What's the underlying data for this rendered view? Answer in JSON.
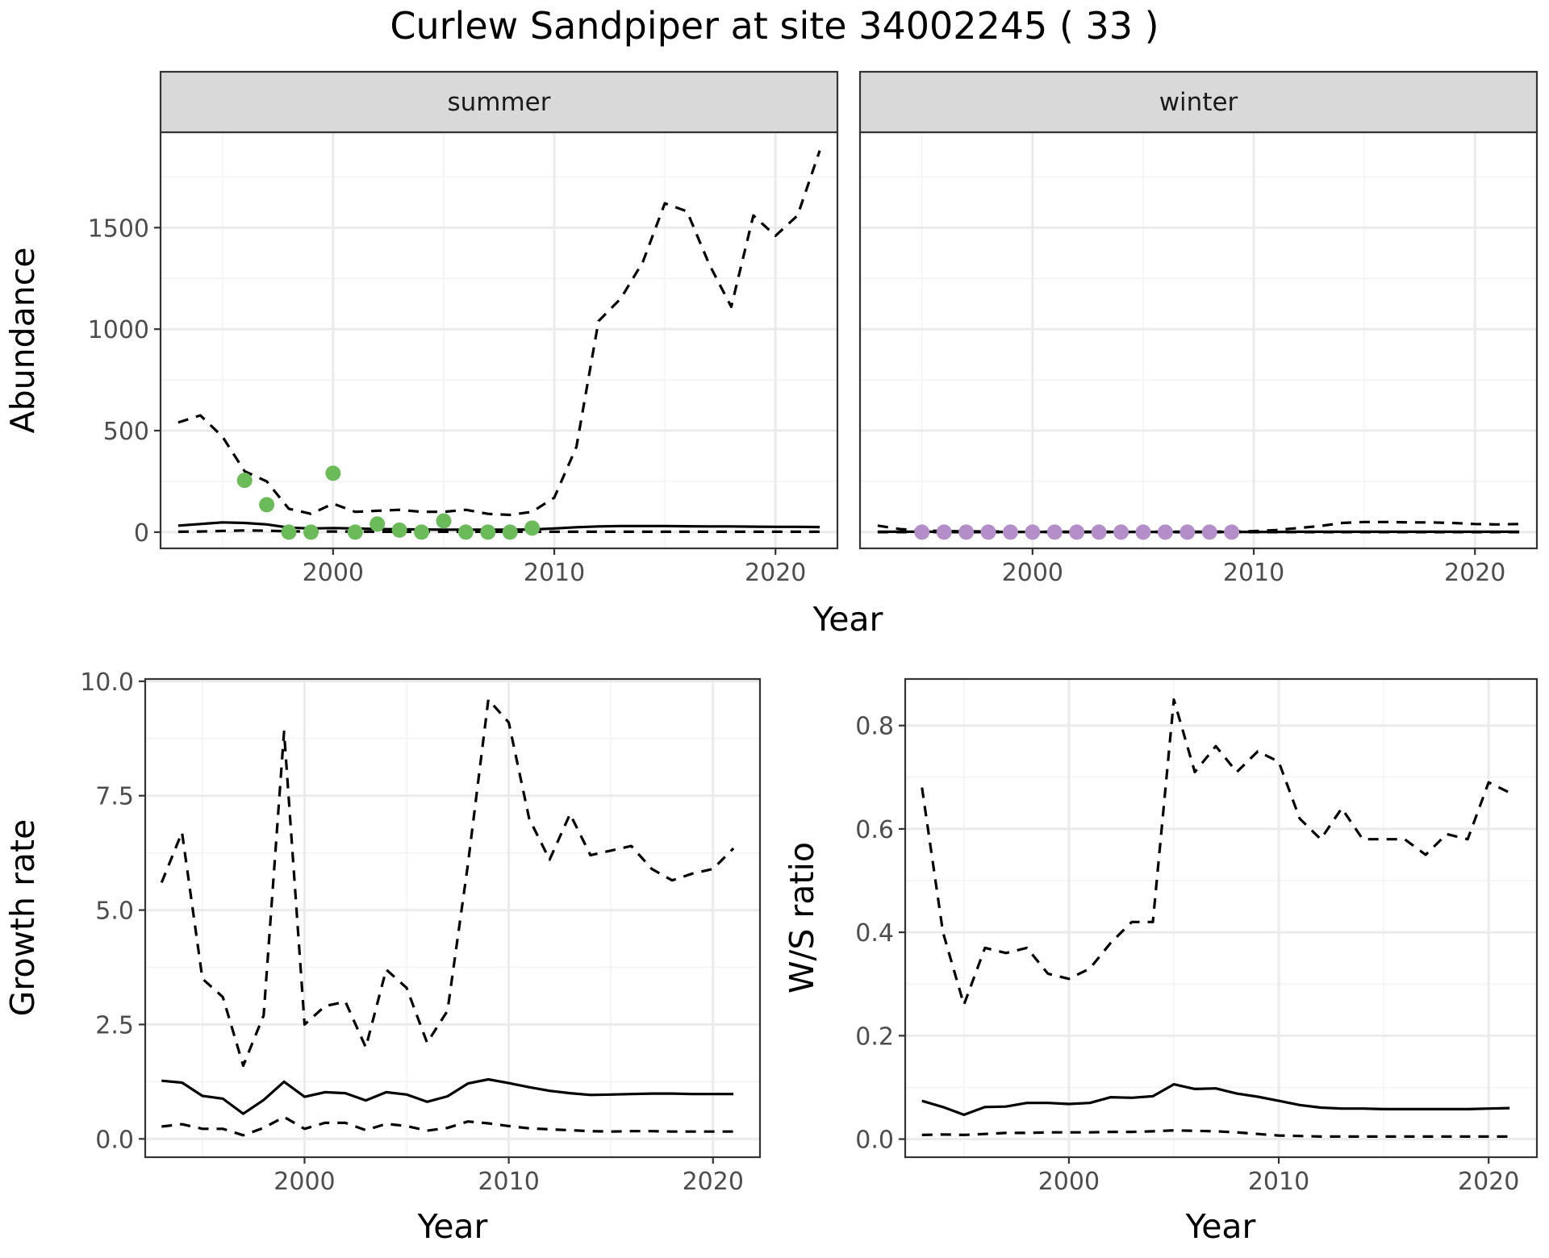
{
  "title": "Curlew Sandpiper at site 34002245 ( 33 )",
  "colors": {
    "summer_points": "#6cbb5a",
    "winter_points": "#b48ec8"
  },
  "chart_data": [
    {
      "type": "line",
      "facet": "summer",
      "xlabel": "Year",
      "ylabel": "Abundance",
      "xlim": [
        1992.2,
        2022.8
      ],
      "ylim": [
        -80,
        1970
      ],
      "x_ticks": [
        "2000",
        "2010",
        "2020"
      ],
      "y_ticks": [
        "0",
        "500",
        "1000",
        "1500"
      ],
      "grid": true,
      "series": [
        {
          "style": "dashed",
          "x": [
            1993,
            1994,
            1995,
            1996,
            1997,
            1998,
            1999,
            2000,
            2001,
            2002,
            2003,
            2004,
            2005,
            2006,
            2007,
            2008,
            2009,
            2010,
            2011,
            2012,
            2013,
            2014,
            2015,
            2016,
            2017,
            2018,
            2019,
            2020,
            2021,
            2022
          ],
          "y": [
            540,
            575,
            470,
            300,
            250,
            115,
            90,
            140,
            100,
            105,
            110,
            100,
            100,
            110,
            90,
            85,
            100,
            170,
            420,
            1040,
            1150,
            1330,
            1620,
            1580,
            1320,
            1110,
            1560,
            1460,
            1560,
            1880
          ]
        },
        {
          "style": "solid",
          "x": [
            1993,
            1994,
            1995,
            1996,
            1997,
            1998,
            1999,
            2000,
            2001,
            2002,
            2003,
            2004,
            2005,
            2006,
            2007,
            2008,
            2009,
            2010,
            2011,
            2012,
            2013,
            2014,
            2015,
            2016,
            2017,
            2018,
            2019,
            2020,
            2021,
            2022
          ],
          "y": [
            32,
            40,
            48,
            45,
            38,
            22,
            18,
            20,
            18,
            15,
            14,
            13,
            12,
            12,
            12,
            12,
            13,
            18,
            24,
            28,
            30,
            30,
            30,
            29,
            28,
            28,
            27,
            26,
            26,
            25
          ]
        },
        {
          "style": "dashed",
          "x": [
            1993,
            1994,
            1995,
            1996,
            1997,
            1998,
            1999,
            2000,
            2001,
            2002,
            2003,
            2004,
            2005,
            2006,
            2007,
            2008,
            2009,
            2010,
            2011,
            2012,
            2013,
            2014,
            2015,
            2016,
            2017,
            2018,
            2019,
            2020,
            2021,
            2022
          ],
          "y": [
            2,
            3,
            6,
            8,
            7,
            4,
            3,
            3,
            3,
            2,
            2,
            2,
            2,
            2,
            2,
            2,
            2,
            2,
            2,
            2,
            2,
            2,
            2,
            2,
            2,
            2,
            2,
            2,
            2,
            2
          ]
        },
        {
          "style": "points",
          "x": [
            1996,
            1997,
            1998,
            1999,
            2000,
            2001,
            2002,
            2003,
            2004,
            2005,
            2006,
            2007,
            2008,
            2009
          ],
          "y": [
            255,
            135,
            0,
            0,
            290,
            0,
            40,
            10,
            0,
            55,
            0,
            0,
            0,
            20
          ]
        }
      ]
    },
    {
      "type": "line",
      "facet": "winter",
      "xlabel": "Year",
      "ylabel": "Abundance",
      "xlim": [
        1992.2,
        2022.8
      ],
      "ylim": [
        -80,
        1970
      ],
      "x_ticks": [
        "2000",
        "2010",
        "2020"
      ],
      "grid": true,
      "series": [
        {
          "style": "dashed",
          "x": [
            1993,
            1994,
            1995,
            1996,
            1997,
            1998,
            1999,
            2000,
            2001,
            2002,
            2003,
            2004,
            2005,
            2006,
            2007,
            2008,
            2009,
            2010,
            2011,
            2012,
            2013,
            2014,
            2015,
            2016,
            2017,
            2018,
            2019,
            2020,
            2021,
            2022
          ],
          "y": [
            32,
            15,
            8,
            5,
            4,
            3,
            3,
            2,
            2,
            2,
            2,
            2,
            2,
            2,
            2,
            2,
            3,
            5,
            10,
            20,
            30,
            45,
            50,
            50,
            48,
            48,
            45,
            40,
            38,
            40
          ]
        },
        {
          "style": "solid",
          "x": [
            1993,
            1994,
            1995,
            1996,
            1997,
            1998,
            1999,
            2000,
            2001,
            2002,
            2003,
            2004,
            2005,
            2006,
            2007,
            2008,
            2009,
            2010,
            2011,
            2012,
            2013,
            2014,
            2015,
            2016,
            2017,
            2018,
            2019,
            2020,
            2021,
            2022
          ],
          "y": [
            2,
            2,
            2,
            2,
            2,
            1,
            1,
            1,
            1,
            1,
            1,
            1,
            1,
            1,
            1,
            1,
            1,
            1,
            1,
            2,
            2,
            2,
            2,
            2,
            2,
            2,
            2,
            2,
            2,
            2
          ]
        },
        {
          "style": "dashed",
          "x": [
            1993,
            2022
          ],
          "y": [
            0,
            0
          ]
        },
        {
          "style": "points",
          "x": [
            1995,
            1996,
            1997,
            1998,
            1999,
            2000,
            2001,
            2002,
            2003,
            2004,
            2005,
            2006,
            2007,
            2008,
            2009
          ],
          "y": [
            0,
            0,
            0,
            0,
            0,
            0,
            0,
            0,
            0,
            0,
            0,
            0,
            0,
            0,
            0
          ]
        }
      ]
    },
    {
      "type": "line",
      "xlabel": "Year",
      "ylabel": "Growth rate",
      "xlim": [
        1992.2,
        2022.3
      ],
      "ylim": [
        -0.4,
        10.05
      ],
      "x_ticks": [
        "2000",
        "2010",
        "2020"
      ],
      "y_ticks": [
        "0.0",
        "2.5",
        "5.0",
        "7.5",
        "10.0"
      ],
      "grid": true,
      "series": [
        {
          "style": "dashed",
          "x": [
            1993,
            1994,
            1995,
            1996,
            1997,
            1998,
            1999,
            2000,
            2001,
            2002,
            2003,
            2004,
            2005,
            2006,
            2007,
            2008,
            2009,
            2010,
            2011,
            2012,
            2013,
            2014,
            2015,
            2016,
            2017,
            2018,
            2019,
            2020,
            2021
          ],
          "y": [
            5.6,
            6.7,
            3.5,
            3.1,
            1.6,
            2.7,
            8.9,
            2.5,
            2.9,
            3.0,
            2.0,
            3.7,
            3.3,
            2.1,
            2.8,
            6.0,
            9.6,
            9.1,
            7.0,
            6.1,
            7.1,
            6.2,
            6.3,
            6.4,
            5.9,
            5.65,
            5.8,
            5.9,
            6.35
          ]
        },
        {
          "style": "solid",
          "x": [
            1993,
            1994,
            1995,
            1996,
            1997,
            1998,
            1999,
            2000,
            2001,
            2002,
            2003,
            2004,
            2005,
            2006,
            2007,
            2008,
            2009,
            2010,
            2011,
            2012,
            2013,
            2014,
            2015,
            2016,
            2017,
            2018,
            2019,
            2020,
            2021
          ],
          "y": [
            1.27,
            1.23,
            0.94,
            0.88,
            0.55,
            0.85,
            1.25,
            0.92,
            1.02,
            1.0,
            0.84,
            1.02,
            0.97,
            0.81,
            0.93,
            1.21,
            1.3,
            1.22,
            1.13,
            1.05,
            1.0,
            0.96,
            0.97,
            0.98,
            0.99,
            0.99,
            0.98,
            0.98,
            0.98
          ]
        },
        {
          "style": "dashed",
          "x": [
            1993,
            1994,
            1995,
            1996,
            1997,
            1998,
            1999,
            2000,
            2001,
            2002,
            2003,
            2004,
            2005,
            2006,
            2007,
            2008,
            2009,
            2010,
            2011,
            2012,
            2013,
            2014,
            2015,
            2016,
            2017,
            2018,
            2019,
            2020,
            2021
          ],
          "y": [
            0.27,
            0.32,
            0.22,
            0.22,
            0.08,
            0.24,
            0.48,
            0.22,
            0.35,
            0.35,
            0.19,
            0.33,
            0.28,
            0.18,
            0.24,
            0.38,
            0.34,
            0.28,
            0.23,
            0.21,
            0.19,
            0.17,
            0.16,
            0.17,
            0.17,
            0.16,
            0.16,
            0.16,
            0.16
          ]
        }
      ]
    },
    {
      "type": "line",
      "xlabel": "Year",
      "ylabel": "W/S ratio",
      "xlim": [
        1992.2,
        2022.3
      ],
      "ylim": [
        -0.035,
        0.89
      ],
      "x_ticks": [
        "2000",
        "2010",
        "2020"
      ],
      "y_ticks": [
        "0.0",
        "0.2",
        "0.4",
        "0.6",
        "0.8"
      ],
      "grid": true,
      "series": [
        {
          "style": "dashed",
          "x": [
            1993,
            1994,
            1995,
            1996,
            1997,
            1998,
            1999,
            2000,
            2001,
            2002,
            2003,
            2004,
            2005,
            2006,
            2007,
            2008,
            2009,
            2010,
            2011,
            2012,
            2013,
            2014,
            2015,
            2016,
            2017,
            2018,
            2019,
            2020,
            2021
          ],
          "y": [
            0.68,
            0.4,
            0.26,
            0.37,
            0.36,
            0.37,
            0.32,
            0.31,
            0.33,
            0.38,
            0.42,
            0.42,
            0.85,
            0.71,
            0.76,
            0.71,
            0.75,
            0.73,
            0.62,
            0.58,
            0.64,
            0.58,
            0.58,
            0.58,
            0.55,
            0.59,
            0.58,
            0.69,
            0.67
          ]
        },
        {
          "style": "solid",
          "x": [
            1993,
            1994,
            1995,
            1996,
            1997,
            1998,
            1999,
            2000,
            2001,
            2002,
            2003,
            2004,
            2005,
            2006,
            2007,
            2008,
            2009,
            2010,
            2011,
            2012,
            2013,
            2014,
            2015,
            2016,
            2017,
            2018,
            2019,
            2020,
            2021
          ],
          "y": [
            0.074,
            0.062,
            0.047,
            0.062,
            0.063,
            0.07,
            0.07,
            0.068,
            0.07,
            0.081,
            0.08,
            0.083,
            0.106,
            0.097,
            0.098,
            0.088,
            0.082,
            0.074,
            0.066,
            0.061,
            0.059,
            0.059,
            0.058,
            0.058,
            0.058,
            0.058,
            0.058,
            0.059,
            0.06
          ]
        },
        {
          "style": "dashed",
          "x": [
            1993,
            1994,
            1995,
            1996,
            1997,
            1998,
            1999,
            2000,
            2001,
            2002,
            2003,
            2004,
            2005,
            2006,
            2007,
            2008,
            2009,
            2010,
            2011,
            2012,
            2013,
            2014,
            2015,
            2016,
            2017,
            2018,
            2019,
            2020,
            2021
          ],
          "y": [
            0.008,
            0.009,
            0.008,
            0.01,
            0.012,
            0.012,
            0.013,
            0.013,
            0.013,
            0.014,
            0.014,
            0.015,
            0.017,
            0.016,
            0.015,
            0.013,
            0.01,
            0.007,
            0.006,
            0.005,
            0.005,
            0.005,
            0.005,
            0.005,
            0.005,
            0.005,
            0.005,
            0.005,
            0.005
          ]
        }
      ]
    }
  ]
}
